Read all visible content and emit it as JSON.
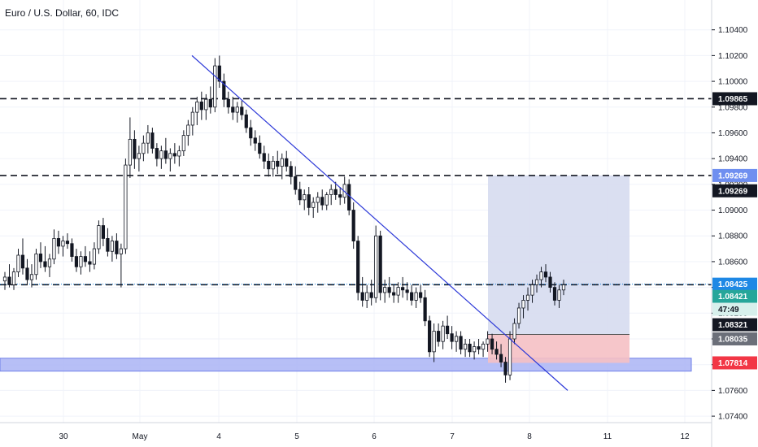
{
  "title": "Euro / U.S. Dollar, 60, IDC",
  "colors": {
    "up_candle": "#ffffff",
    "down_candle": "#131722",
    "dashed_levels": "#131722",
    "trendline": "#2e3ad8",
    "support_zone": "#aab4f5",
    "target_zone": "#d6dcef",
    "stop_zone": "#f5c0c4",
    "current_price_line": "#1e88e5",
    "current_price_tag": "#1e88e5"
  },
  "chart_data": {
    "type": "candlestick",
    "symbol": "Euro / U.S. Dollar",
    "interval": "60",
    "source": "IDC",
    "ylim": [
      1.0735,
      1.106
    ],
    "y_ticks": [
      1.074,
      1.076,
      1.078,
      1.08,
      1.082,
      1.084,
      1.086,
      1.088,
      1.09,
      1.092,
      1.094,
      1.096,
      1.098,
      1.1,
      1.102,
      1.104
    ],
    "y_tick_labels": [
      "1.07400",
      "1.07600",
      "1.07800",
      "1.08000",
      "1.08200",
      "1.08400",
      "1.08600",
      "1.08800",
      "1.09000",
      "1.09200",
      "1.09400",
      "1.09600",
      "1.09800",
      "1.10000",
      "1.10200",
      "1.10400"
    ],
    "x_labels": [
      "30",
      "May",
      "4",
      "5",
      "6",
      "7",
      "8",
      "11",
      "12"
    ],
    "horizontal_levels": [
      1.09865,
      1.09269,
      1.08421
    ],
    "price_tags": [
      {
        "label": "1.09865",
        "price": 1.09865,
        "style": "dark"
      },
      {
        "label": "1.09269",
        "price": 1.09269,
        "style": "blue-light"
      },
      {
        "label": "1.09269",
        "price": 1.0915,
        "style": "dark"
      },
      {
        "label": "1.08425",
        "price": 1.08425,
        "style": "blue"
      },
      {
        "label": "1.08421",
        "price": 1.0833,
        "style": "green"
      },
      {
        "label": "47:49",
        "price": 1.0823,
        "style": "green-timer"
      },
      {
        "label": "1.08321",
        "price": 1.0811,
        "style": "dark"
      },
      {
        "label": "1.08035",
        "price": 1.08,
        "style": "gray"
      },
      {
        "label": "1.07814",
        "price": 1.07814,
        "style": "red"
      }
    ],
    "current_price": 1.08425,
    "support_zone": [
      1.0775,
      1.0785
    ],
    "position": {
      "entry": 1.08035,
      "target": 1.09269,
      "stop": 1.07814
    },
    "trendline": {
      "from_price": 1.102,
      "to_price": 1.076
    },
    "candles": [
      [
        1.0845,
        1.0852,
        1.0838,
        1.0848
      ],
      [
        1.0848,
        1.0858,
        1.084,
        1.0842
      ],
      [
        1.0842,
        1.0855,
        1.0838,
        1.0852
      ],
      [
        1.0852,
        1.087,
        1.0848,
        1.0865
      ],
      [
        1.0865,
        1.0878,
        1.085,
        1.0855
      ],
      [
        1.0855,
        1.0862,
        1.0842,
        1.0846
      ],
      [
        1.0846,
        1.0858,
        1.084,
        1.085
      ],
      [
        1.085,
        1.087,
        1.0846,
        1.0866
      ],
      [
        1.0866,
        1.0875,
        1.0855,
        1.086
      ],
      [
        1.086,
        1.0872,
        1.0852,
        1.0856
      ],
      [
        1.0856,
        1.0866,
        1.0848,
        1.0862
      ],
      [
        1.0862,
        1.0885,
        1.0858,
        1.0878
      ],
      [
        1.0878,
        1.0884,
        1.0866,
        1.0872
      ],
      [
        1.0872,
        1.088,
        1.0864,
        1.0876
      ],
      [
        1.0876,
        1.0882,
        1.087,
        1.0874
      ],
      [
        1.0874,
        1.0878,
        1.086,
        1.0864
      ],
      [
        1.0864,
        1.087,
        1.0852,
        1.0856
      ],
      [
        1.0856,
        1.0868,
        1.085,
        1.0864
      ],
      [
        1.0864,
        1.0872,
        1.0856,
        1.086
      ],
      [
        1.086,
        1.0868,
        1.0852,
        1.0858
      ],
      [
        1.0858,
        1.0875,
        1.0854,
        1.087
      ],
      [
        1.087,
        1.0892,
        1.0866,
        1.0888
      ],
      [
        1.0888,
        1.0894,
        1.0872,
        1.0878
      ],
      [
        1.0878,
        1.0886,
        1.0864,
        1.0868
      ],
      [
        1.0868,
        1.088,
        1.086,
        1.0876
      ],
      [
        1.0876,
        1.0882,
        1.0862,
        1.0866
      ],
      [
        1.0866,
        1.0874,
        1.084,
        1.087
      ],
      [
        1.087,
        1.094,
        1.0866,
        1.0935
      ],
      [
        1.0935,
        1.0972,
        1.0925,
        1.0955
      ],
      [
        1.0955,
        1.0962,
        1.0932,
        1.094
      ],
      [
        1.094,
        1.095,
        1.093,
        1.0944
      ],
      [
        1.0944,
        1.0958,
        1.0938,
        1.0952
      ],
      [
        1.0952,
        1.0966,
        1.0944,
        1.096
      ],
      [
        1.096,
        1.0964,
        1.0944,
        1.0948
      ],
      [
        1.0948,
        1.0952,
        1.0934,
        1.094
      ],
      [
        1.094,
        1.095,
        1.0932,
        1.0946
      ],
      [
        1.0946,
        1.0956,
        1.0936,
        1.094
      ],
      [
        1.094,
        1.0948,
        1.093,
        1.0944
      ],
      [
        1.0944,
        1.0952,
        1.0936,
        1.0942
      ],
      [
        1.0942,
        1.095,
        1.0934,
        1.0946
      ],
      [
        1.0946,
        1.0962,
        1.0942,
        1.0958
      ],
      [
        1.0958,
        1.097,
        1.095,
        1.0966
      ],
      [
        1.0966,
        1.098,
        1.0958,
        1.0976
      ],
      [
        1.0976,
        1.0988,
        1.0966,
        1.0984
      ],
      [
        1.0984,
        1.0992,
        1.097,
        1.0978
      ],
      [
        1.0978,
        1.099,
        1.097,
        1.0986
      ],
      [
        1.0986,
        1.0996,
        1.0975,
        1.098
      ],
      [
        1.098,
        1.1018,
        1.0976,
        1.1012
      ],
      [
        1.1012,
        1.102,
        1.0995,
        1.1
      ],
      [
        1.1,
        1.1006,
        1.098,
        1.0986
      ],
      [
        1.0986,
        1.0992,
        1.0975,
        1.098
      ],
      [
        1.098,
        1.0988,
        1.097,
        1.0976
      ],
      [
        1.0976,
        1.0984,
        1.0968,
        1.098
      ],
      [
        1.098,
        1.0985,
        1.097,
        1.0974
      ],
      [
        1.0974,
        1.0978,
        1.096,
        1.0964
      ],
      [
        1.0964,
        1.097,
        1.095,
        1.0956
      ],
      [
        1.0956,
        1.0962,
        1.0946,
        1.0952
      ],
      [
        1.0952,
        1.0958,
        1.094,
        1.0944
      ],
      [
        1.0944,
        1.095,
        1.0932,
        1.0938
      ],
      [
        1.0938,
        1.0944,
        1.0926,
        1.0932
      ],
      [
        1.0932,
        1.0942,
        1.0926,
        1.0938
      ],
      [
        1.0938,
        1.0946,
        1.0928,
        1.0934
      ],
      [
        1.0934,
        1.0944,
        1.0924,
        1.094
      ],
      [
        1.094,
        1.0946,
        1.093,
        1.0934
      ],
      [
        1.0934,
        1.0938,
        1.092,
        1.0926
      ],
      [
        1.0926,
        1.0934,
        1.0912,
        1.0916
      ],
      [
        1.0916,
        1.0922,
        1.0904,
        1.0908
      ],
      [
        1.0908,
        1.0916,
        1.09,
        1.0912
      ],
      [
        1.0912,
        1.0918,
        1.0896,
        1.0902
      ],
      [
        1.0902,
        1.091,
        1.0894,
        1.0906
      ],
      [
        1.0906,
        1.0914,
        1.0898,
        1.091
      ],
      [
        1.091,
        1.0916,
        1.09,
        1.0904
      ],
      [
        1.0904,
        1.0914,
        1.09,
        1.0912
      ],
      [
        1.0912,
        1.092,
        1.0904,
        1.0916
      ],
      [
        1.0916,
        1.0922,
        1.0908,
        1.0912
      ],
      [
        1.0912,
        1.0918,
        1.0904,
        1.091
      ],
      [
        1.091,
        1.0926,
        1.0905,
        1.092
      ],
      [
        1.092,
        1.0924,
        1.0896,
        1.09
      ],
      [
        1.09,
        1.0906,
        1.087,
        1.0876
      ],
      [
        1.0876,
        1.088,
        1.083,
        1.0836
      ],
      [
        1.0836,
        1.0848,
        1.0825,
        1.083
      ],
      [
        1.083,
        1.0842,
        1.0824,
        1.0836
      ],
      [
        1.0836,
        1.0846,
        1.0826,
        1.0832
      ],
      [
        1.0832,
        1.0888,
        1.0828,
        1.088
      ],
      [
        1.088,
        1.0884,
        1.083,
        1.0836
      ],
      [
        1.0836,
        1.0846,
        1.0828,
        1.084
      ],
      [
        1.084,
        1.0848,
        1.0832,
        1.0836
      ],
      [
        1.0836,
        1.0842,
        1.0828,
        1.0834
      ],
      [
        1.0834,
        1.0844,
        1.0828,
        1.084
      ],
      [
        1.084,
        1.0848,
        1.0832,
        1.0838
      ],
      [
        1.0838,
        1.0844,
        1.083,
        1.0836
      ],
      [
        1.0836,
        1.0842,
        1.0826,
        1.083
      ],
      [
        1.083,
        1.084,
        1.0824,
        1.0836
      ],
      [
        1.0836,
        1.0842,
        1.0828,
        1.0832
      ],
      [
        1.0832,
        1.0838,
        1.081,
        1.0814
      ],
      [
        1.0814,
        1.0818,
        1.0786,
        1.079
      ],
      [
        1.079,
        1.0812,
        1.0782,
        1.0806
      ],
      [
        1.0806,
        1.0812,
        1.0794,
        1.0798
      ],
      [
        1.0798,
        1.0814,
        1.0792,
        1.081
      ],
      [
        1.081,
        1.0818,
        1.08,
        1.0804
      ],
      [
        1.0804,
        1.081,
        1.0792,
        1.0798
      ],
      [
        1.0798,
        1.0806,
        1.079,
        1.0802
      ],
      [
        1.0802,
        1.0806,
        1.0788,
        1.0792
      ],
      [
        1.0792,
        1.08,
        1.0786,
        1.0796
      ],
      [
        1.0796,
        1.08,
        1.0786,
        1.079
      ],
      [
        1.079,
        1.0798,
        1.0784,
        1.0794
      ],
      [
        1.0794,
        1.08,
        1.0788,
        1.0792
      ],
      [
        1.0792,
        1.0798,
        1.0786,
        1.0796
      ],
      [
        1.0796,
        1.0806,
        1.079,
        1.08
      ],
      [
        1.08,
        1.0804,
        1.0788,
        1.0792
      ],
      [
        1.0792,
        1.0798,
        1.0784,
        1.0788
      ],
      [
        1.0788,
        1.0796,
        1.0778,
        1.0782
      ],
      [
        1.0782,
        1.0786,
        1.0766,
        1.0772
      ],
      [
        1.0772,
        1.0806,
        1.0768,
        1.08
      ],
      [
        1.08,
        1.0816,
        1.0796,
        1.0812
      ],
      [
        1.0812,
        1.0828,
        1.0808,
        1.0824
      ],
      [
        1.0824,
        1.0834,
        1.0816,
        1.083
      ],
      [
        1.083,
        1.084,
        1.0822,
        1.0834
      ],
      [
        1.0834,
        1.0846,
        1.0828,
        1.0842
      ],
      [
        1.0842,
        1.085,
        1.0836,
        1.0846
      ],
      [
        1.0846,
        1.0856,
        1.084,
        1.0852
      ],
      [
        1.0852,
        1.0858,
        1.0844,
        1.0848
      ],
      [
        1.0848,
        1.0852,
        1.0836,
        1.084
      ],
      [
        1.084,
        1.0844,
        1.0826,
        1.083
      ],
      [
        1.083,
        1.0842,
        1.0824,
        1.0838
      ],
      [
        1.0838,
        1.0846,
        1.0834,
        1.0842
      ]
    ]
  }
}
